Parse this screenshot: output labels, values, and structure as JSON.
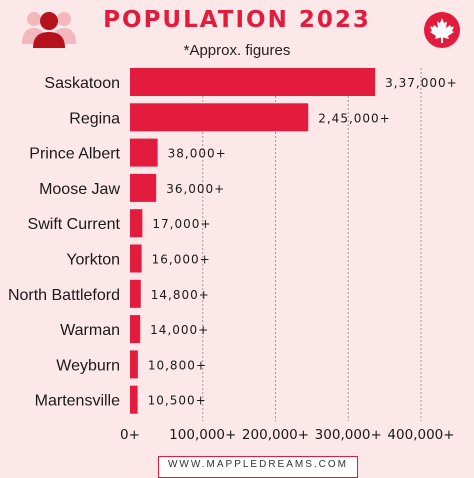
{
  "header": {
    "title": "POPULATION 2023",
    "subtitle": "*Approx. figures",
    "footer": "WWW.MAPPLEDREAMS.COM",
    "accent_color": "#e31b3c",
    "background_color": "#fde8e9",
    "left_icon": "people-group-icon",
    "right_icon": "maple-leaf-icon"
  },
  "chart_data": {
    "type": "bar",
    "orientation": "horizontal",
    "categories": [
      "Saskatoon",
      "Regina",
      "Prince Albert",
      "Moose Jaw",
      "Swift Current",
      "Yorkton",
      "North Battleford",
      "Warman",
      "Weyburn",
      "Martensville"
    ],
    "values": [
      337000,
      245000,
      38000,
      36000,
      17000,
      16000,
      14800,
      14000,
      10800,
      10500
    ],
    "value_labels": [
      "3,37,000+",
      "2,45,000+",
      "38,000+",
      "36,000+",
      "17,000+",
      "16,000+",
      "14,800+",
      "14,000+",
      "10,800+",
      "10,500+"
    ],
    "x_ticks": [
      0,
      100000,
      200000,
      300000,
      400000
    ],
    "x_tick_labels": [
      "0+",
      "100,000+",
      "200,000+",
      "300,000+",
      "400,000+"
    ],
    "xlim": [
      0,
      400000
    ],
    "grid": "vertical dashed",
    "bar_color": "#e31b3c",
    "title": "POPULATION 2023",
    "subtitle": "*Approx. figures"
  }
}
